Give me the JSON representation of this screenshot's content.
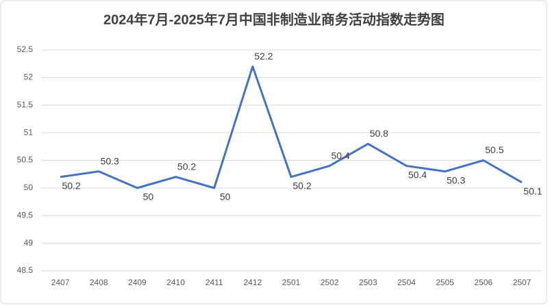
{
  "chart_data": {
    "type": "line",
    "title": "2024年7月-2025年7月中国非制造业商务活动指数走势图",
    "categories": [
      "2407",
      "2408",
      "2409",
      "2410",
      "2411",
      "2412",
      "2501",
      "2502",
      "2503",
      "2504",
      "2505",
      "2506",
      "2507"
    ],
    "values": [
      50.2,
      50.3,
      50,
      50.2,
      50,
      52.2,
      50.2,
      50.4,
      50.8,
      50.4,
      50.3,
      50.5,
      50.1
    ],
    "color": "#4472c4",
    "ylim": [
      48.5,
      52.5
    ],
    "yticks": [
      48.5,
      49,
      49.5,
      50,
      50.5,
      51,
      51.5,
      52,
      52.5
    ],
    "grid": true
  }
}
